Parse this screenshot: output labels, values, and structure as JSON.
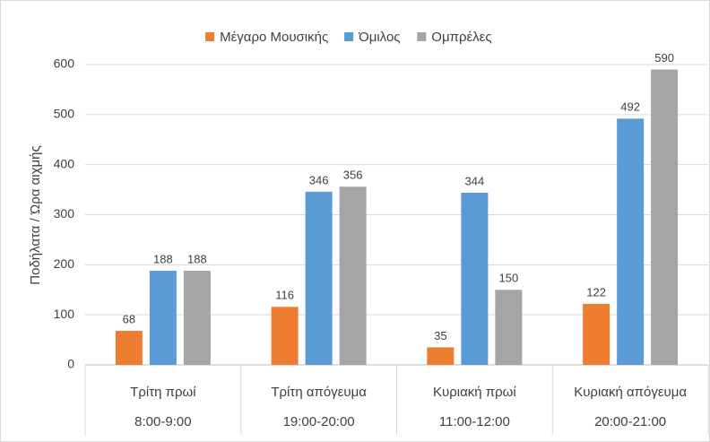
{
  "chart_data": {
    "type": "bar",
    "y_label": "Ποδήλατα / Ώρα αιχμής",
    "categories": [
      [
        "Τρίτη πρωί",
        "8:00-9:00"
      ],
      [
        "Τρίτη απόγευμα",
        "19:00-20:00"
      ],
      [
        "Κυριακή πρωί",
        "11:00-12:00"
      ],
      [
        "Κυριακή απόγευμα",
        "20:00-21:00"
      ]
    ],
    "series": [
      {
        "name": "Μέγαρο Μουσικής",
        "color": "#ed7d31",
        "values": [
          68,
          116,
          35,
          122
        ]
      },
      {
        "name": "Όμιλος",
        "color": "#5b9bd5",
        "values": [
          188,
          346,
          344,
          492
        ]
      },
      {
        "name": "Ομπρέλες",
        "color": "#a5a5a5",
        "values": [
          188,
          356,
          150,
          590
        ]
      }
    ],
    "ylim": [
      0,
      600
    ],
    "yticks": [
      0,
      100,
      200,
      300,
      400,
      500,
      600
    ],
    "grid": true,
    "legend": "top"
  }
}
